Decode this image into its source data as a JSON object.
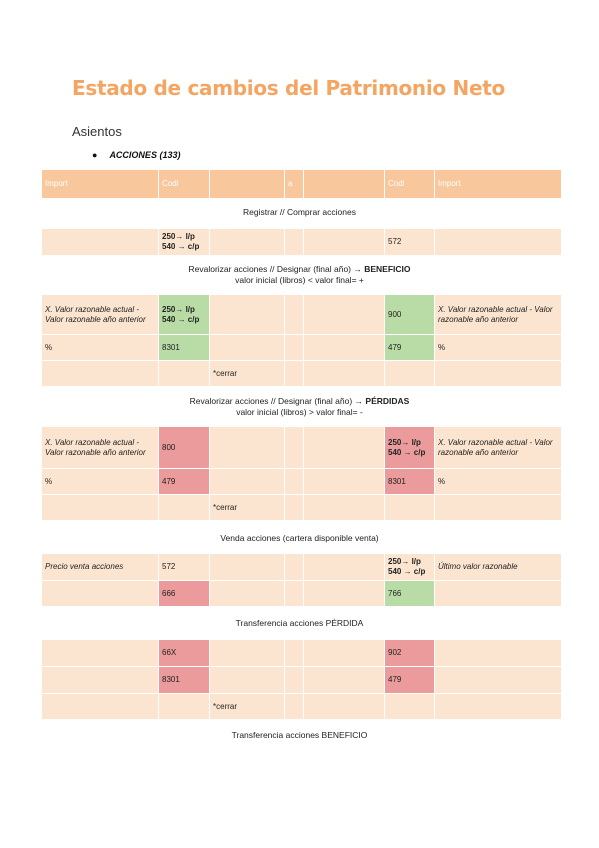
{
  "title": "Estado de cambios del Patrimonio Neto",
  "subtitle": "Asientos",
  "bullet": "ACCIONES (133)",
  "header": [
    "Import",
    "Codi",
    "",
    "a",
    "",
    "Codi",
    "Import"
  ],
  "sections": {
    "s1": {
      "caption": "Registrar // Comprar acciones",
      "row": {
        "debit_codes": "250→ l/p\n540 → c/p",
        "credit_code": "572"
      }
    },
    "s2": {
      "caption_line1": "Revalorizar acciones // Designar (final año) → ",
      "caption_bold": "BENEFICIO",
      "caption_line2": "valor  inicial (libros) < valor final= +",
      "row1": {
        "left_text": "X. Valor razonable actual - Valor razonable año anterior",
        "debit_codes": "250→ l/p\n540 → c/p",
        "credit_code": "900",
        "right_text": "X. Valor razonable actual - Valor razonable año anterior"
      },
      "row2": {
        "left_text": "%",
        "debit_code": "8301",
        "credit_code": "479",
        "right_text": "%"
      },
      "row3": {
        "note": "*cerrar"
      }
    },
    "s3": {
      "caption_line1": "Revalorizar acciones // Designar (final año) → ",
      "caption_bold": "PÉRDIDAS",
      "caption_line2": "valor  inicial (libros) > valor final= -",
      "row1": {
        "left_text": "X. Valor razonable actual - Valor razonable año anterior",
        "debit_code": "800",
        "credit_codes": "250→ l/p\n540 → c/p",
        "right_text": "X. Valor razonable actual - Valor razonable año anterior"
      },
      "row2": {
        "left_text": "%",
        "debit_code": "479",
        "credit_code": "8301",
        "right_text": "%"
      },
      "row3": {
        "note": "*cerrar"
      }
    },
    "s4": {
      "caption": "Venda acciones (cartera disponible venta)",
      "row1": {
        "left_text": "Precio venta acciones",
        "debit_code": "572",
        "credit_codes": "250→ l/p\n540 → c/p",
        "right_text": "Último valor razonable"
      },
      "row2": {
        "debit_code": "666",
        "credit_code": "766"
      }
    },
    "s5": {
      "caption": "Transferencia acciones PÉRDIDA",
      "row1": {
        "debit_code": "66X",
        "credit_code": "902"
      },
      "row2": {
        "debit_code": "8301",
        "credit_code": "479"
      },
      "row3": {
        "note": "*cerrar"
      }
    },
    "s6": {
      "caption": "Transferencia acciones BENEFICIO"
    }
  }
}
